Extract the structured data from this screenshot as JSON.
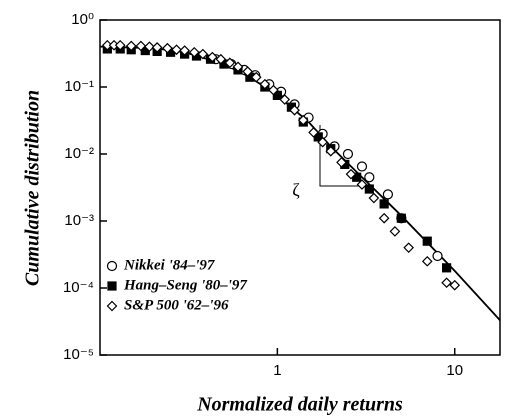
{
  "chart_data": {
    "type": "scatter",
    "x_label": "Normalized daily returns",
    "y_label": "Cumulative distribution",
    "xscale": "log",
    "yscale": "log",
    "xlim": [
      0.1,
      18
    ],
    "ylim": [
      1e-05,
      1
    ],
    "xticks": [
      1,
      10
    ],
    "yticks": [
      {
        "value": 1,
        "label": "10⁰"
      },
      {
        "value": 0.1,
        "label": "10⁻¹"
      },
      {
        "value": 0.01,
        "label": "10⁻²"
      },
      {
        "value": 0.001,
        "label": "10⁻³"
      },
      {
        "value": 0.0001,
        "label": "10⁻⁴"
      },
      {
        "value": 1e-05,
        "label": "10⁻⁵"
      }
    ],
    "legend": "lower left",
    "annotation": "ζ",
    "series": [
      {
        "name": "Nikkei  '84–'97",
        "marker": "circle",
        "filled": false,
        "color": "#000000",
        "x": [
          0.45,
          0.55,
          0.65,
          0.75,
          0.9,
          1.05,
          1.25,
          1.5,
          1.8,
          2.1,
          2.5,
          3.0,
          3.3,
          4.2,
          5.0,
          8.0
        ],
        "values": [
          0.26,
          0.22,
          0.18,
          0.15,
          0.11,
          0.085,
          0.055,
          0.035,
          0.02,
          0.013,
          0.01,
          0.0065,
          0.0045,
          0.0025,
          0.0011,
          0.0003
        ]
      },
      {
        "name": "Hang–Seng '80–'97",
        "marker": "square",
        "filled": true,
        "color": "#000000",
        "x": [
          0.11,
          0.13,
          0.15,
          0.18,
          0.21,
          0.25,
          0.3,
          0.35,
          0.42,
          0.5,
          0.6,
          0.7,
          0.85,
          1.0,
          1.2,
          1.4,
          1.7,
          2.0,
          2.4,
          2.8,
          3.3,
          4.0,
          5.0,
          7.0,
          9.0
        ],
        "values": [
          0.37,
          0.37,
          0.36,
          0.35,
          0.34,
          0.33,
          0.31,
          0.29,
          0.26,
          0.22,
          0.18,
          0.14,
          0.1,
          0.075,
          0.05,
          0.03,
          0.018,
          0.012,
          0.007,
          0.0045,
          0.003,
          0.0018,
          0.0011,
          0.0005,
          0.0002
        ]
      },
      {
        "name": "S&P 500 '62–'96",
        "marker": "diamond",
        "filled": false,
        "color": "#000000",
        "x": [
          0.11,
          0.12,
          0.13,
          0.15,
          0.17,
          0.19,
          0.21,
          0.24,
          0.27,
          0.3,
          0.34,
          0.38,
          0.43,
          0.48,
          0.54,
          0.6,
          0.68,
          0.76,
          0.85,
          0.95,
          1.1,
          1.25,
          1.4,
          1.6,
          1.8,
          2.0,
          2.3,
          2.6,
          3.0,
          3.5,
          4.0,
          4.6,
          5.5,
          7.0,
          9.0,
          10
        ],
        "values": [
          0.42,
          0.42,
          0.42,
          0.41,
          0.41,
          0.4,
          0.39,
          0.38,
          0.36,
          0.35,
          0.33,
          0.31,
          0.28,
          0.26,
          0.23,
          0.2,
          0.17,
          0.14,
          0.11,
          0.09,
          0.065,
          0.045,
          0.032,
          0.021,
          0.015,
          0.011,
          0.0075,
          0.005,
          0.0035,
          0.0022,
          0.0011,
          0.0007,
          0.0004,
          0.00025,
          0.00012,
          0.00011
        ]
      }
    ],
    "fit": {
      "color": "#000000",
      "x": [
        0.1,
        0.2,
        0.3,
        0.5,
        0.7,
        1,
        1.5,
        2,
        3,
        5,
        10,
        18
      ],
      "values": [
        0.4,
        0.38,
        0.33,
        0.22,
        0.14,
        0.075,
        0.03,
        0.013,
        0.0045,
        0.0012,
        0.00018,
        3.3e-05
      ]
    }
  }
}
